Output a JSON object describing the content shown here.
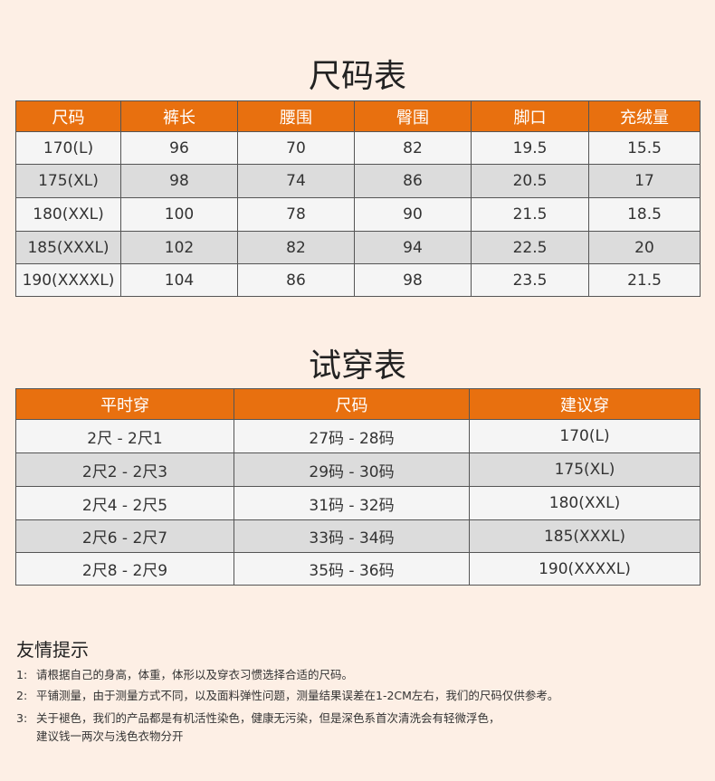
{
  "size_table": {
    "title": "尺码表",
    "headers": [
      "尺码",
      "裤长",
      "腰围",
      "臀围",
      "脚口",
      "充绒量"
    ],
    "rows": [
      [
        "170(L)",
        "96",
        "70",
        "82",
        "19.5",
        "15.5"
      ],
      [
        "175(XL)",
        "98",
        "74",
        "86",
        "20.5",
        "17"
      ],
      [
        "180(XXL)",
        "100",
        "78",
        "90",
        "21.5",
        "18.5"
      ],
      [
        "185(XXXL)",
        "102",
        "82",
        "94",
        "22.5",
        "20"
      ],
      [
        "190(XXXXL)",
        "104",
        "86",
        "98",
        "23.5",
        "21.5"
      ]
    ]
  },
  "fit_table": {
    "title": "试穿表",
    "headers": [
      "平时穿",
      "尺码",
      "建议穿"
    ],
    "rows": [
      [
        "2尺 - 2尺1",
        "27码 - 28码",
        "170(L)"
      ],
      [
        "2尺2 - 2尺3",
        "29码 - 30码",
        "175(XL)"
      ],
      [
        "2尺4 - 2尺5",
        "31码 - 32码",
        "180(XXL)"
      ],
      [
        "2尺6 - 2尺7",
        "33码 - 34码",
        "185(XXXL)"
      ],
      [
        "2尺8 - 2尺9",
        "35码 - 36码",
        "190(XXXXL)"
      ]
    ]
  },
  "tips": {
    "title": "友情提示",
    "items": [
      {
        "num": "1:",
        "lines": [
          "请根据自己的身高，体重，体形以及穿衣习惯选择合适的尺码。"
        ]
      },
      {
        "num": "2:",
        "lines": [
          "平铺测量，由于测量方式不同，以及面料弹性问题，测量结果误差在1-2CM左右，我们的尺码仅供参考。"
        ]
      },
      {
        "num": "3:",
        "lines": [
          "关于褪色，我们的产品都是有机活性染色，健康无污染，但是深色系首次清洗会有轻微浮色，",
          "建议钱一两次与浅色衣物分开"
        ]
      }
    ]
  }
}
